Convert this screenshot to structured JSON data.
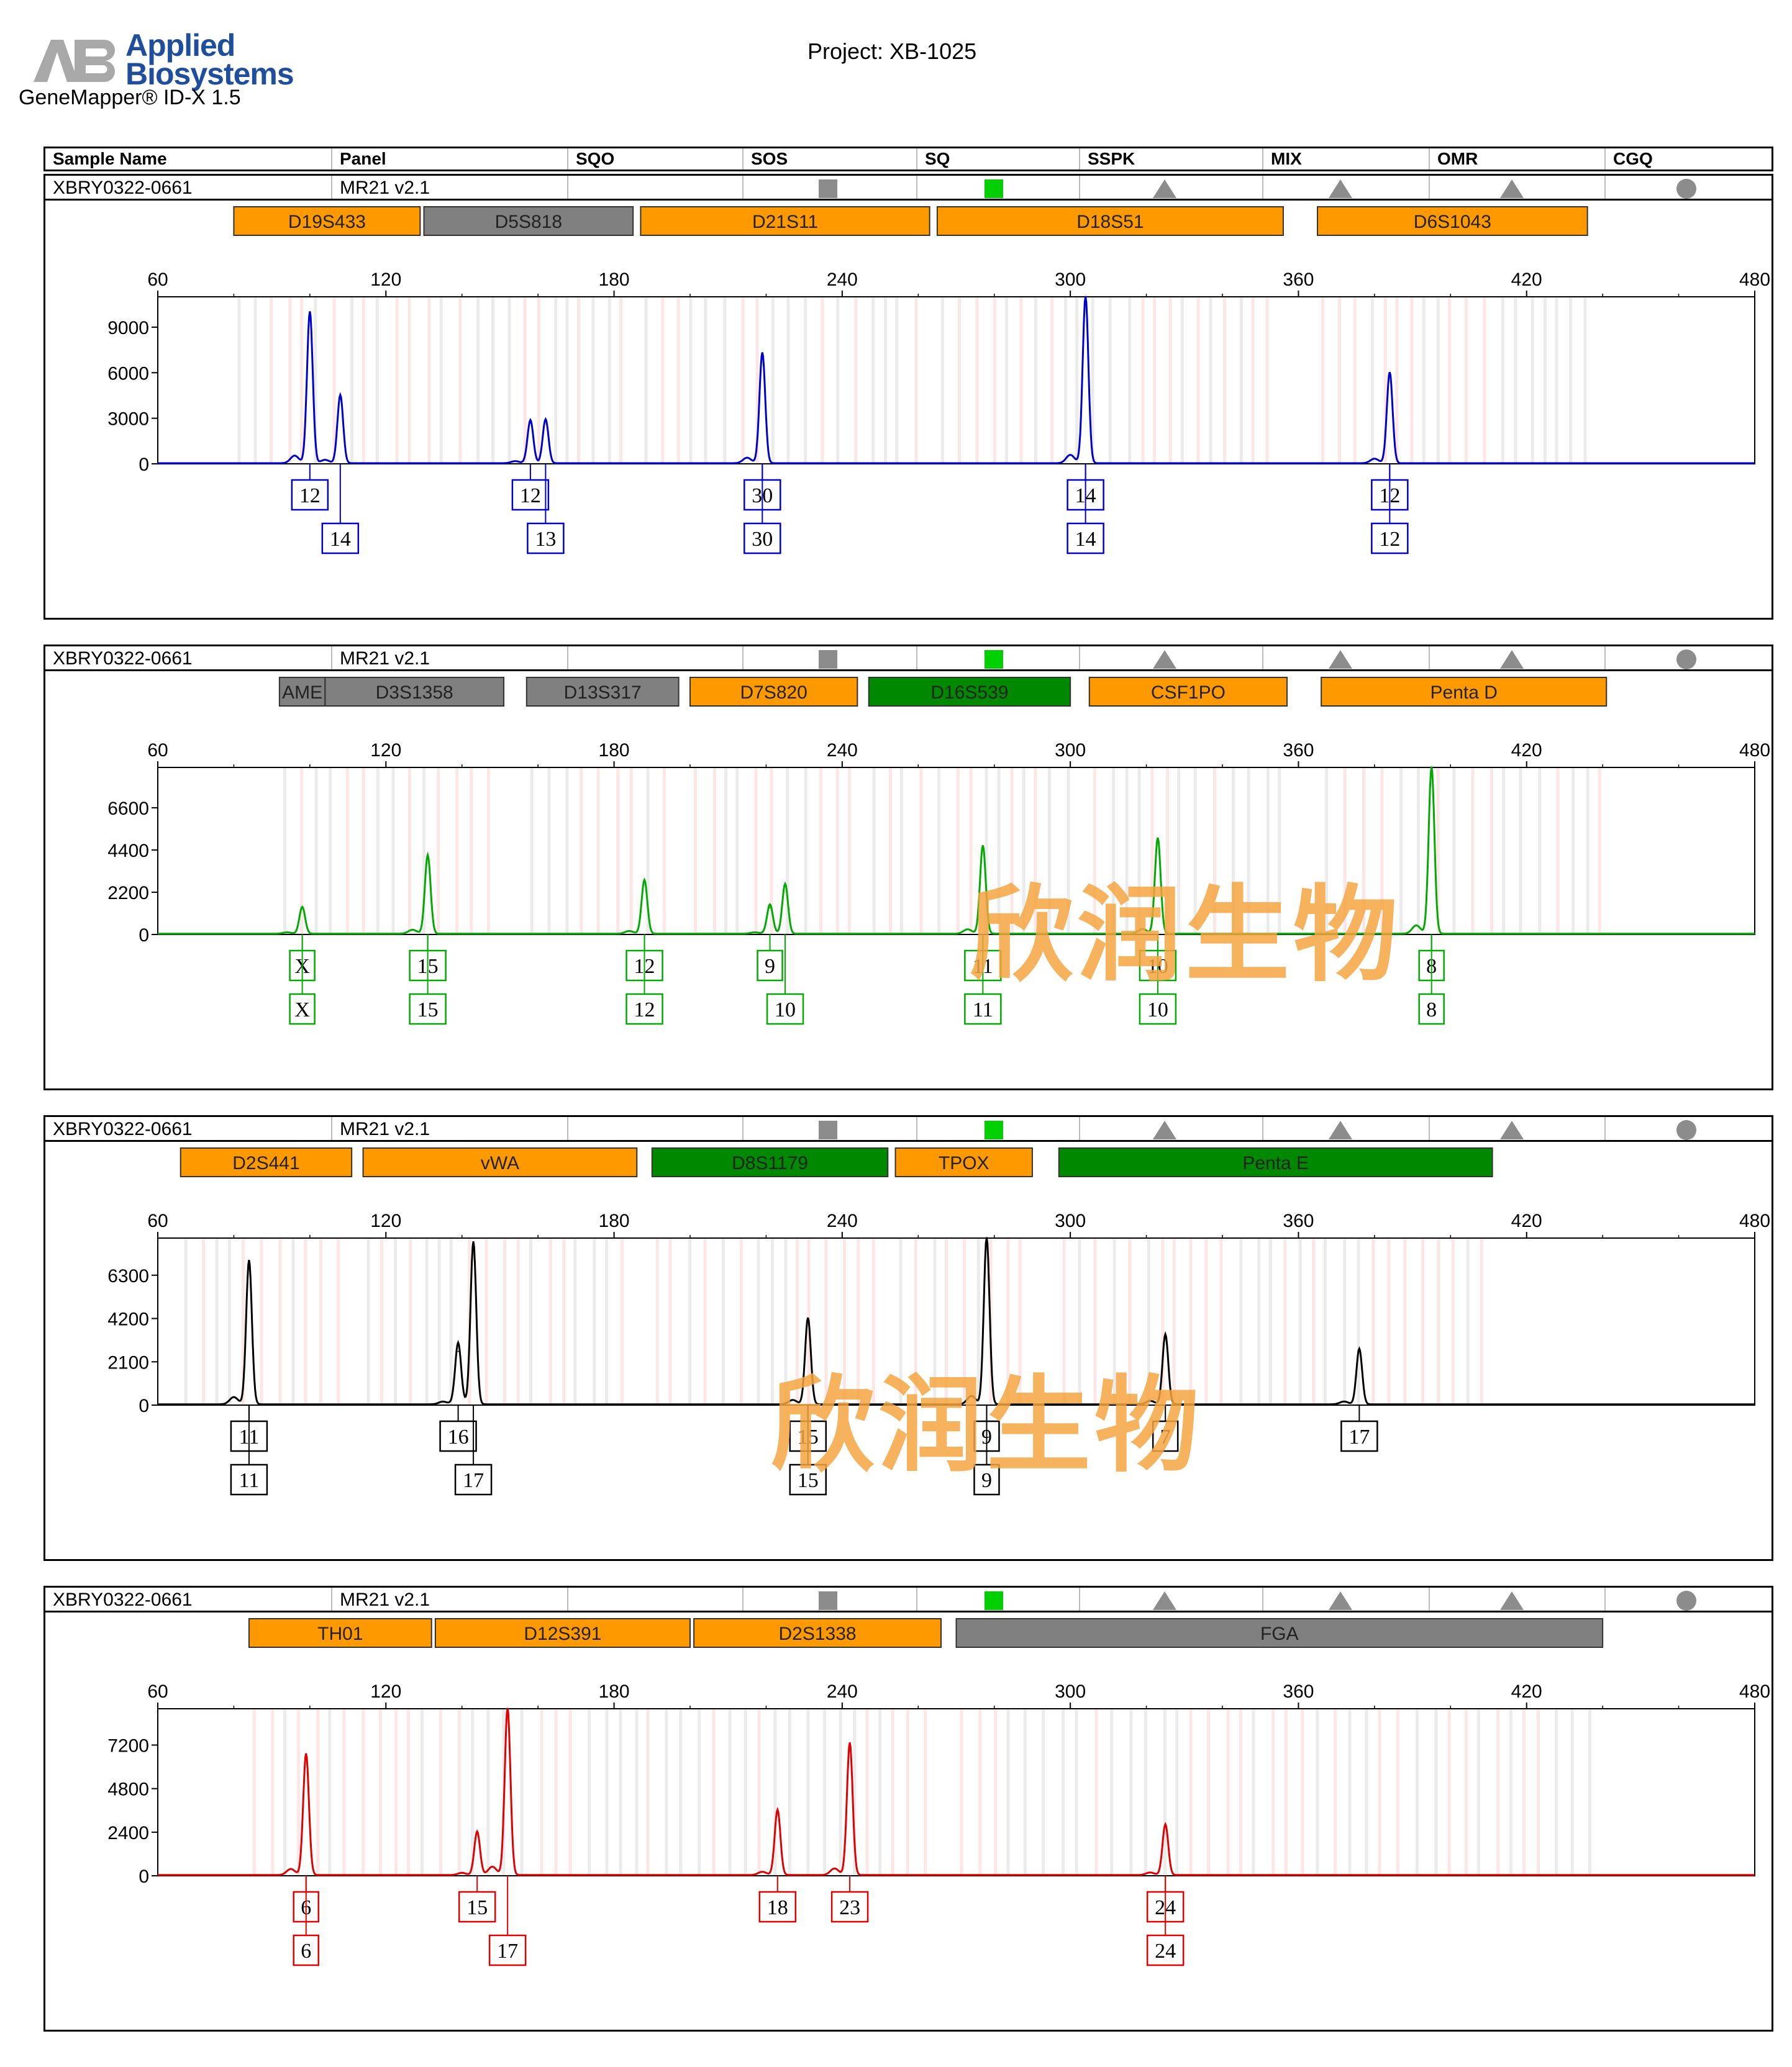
{
  "logo": {
    "brand_line1": "Applied",
    "brand_line2": "Biosystems",
    "product": "GeneMapper® ID-X  1.5"
  },
  "project": "Project: XB-1025",
  "header": {
    "columns": [
      "Sample Name",
      "Panel",
      "SQO",
      "SOS",
      "SQ",
      "SSPK",
      "MIX",
      "OMR",
      "CGQ"
    ]
  },
  "sample": {
    "name": "XBRY0322-0661",
    "panel": "MR21  v2.1"
  },
  "quality_icons": {
    "sos": "gray-square-icon",
    "sq": "green-square-icon",
    "sspk": "gray-triangle-icon",
    "mix": "gray-triangle-icon",
    "omr": "gray-triangle-icon",
    "cgq": "gray-circle-icon"
  },
  "watermark": "欣润生物",
  "colors": {
    "blue": "#0000cc",
    "green": "#00aa00",
    "black": "#000000",
    "red": "#e00000",
    "orange_marker": "#ff9900",
    "gray_marker": "#808080",
    "green_marker": "#008800"
  },
  "chart_data": [
    {
      "type": "line",
      "dye": "blue",
      "xlim": [
        60,
        480
      ],
      "ylim": [
        0,
        11000
      ],
      "x_ticks": [
        60,
        120,
        180,
        240,
        300,
        360,
        420,
        480
      ],
      "y_ticks": [
        0,
        3000,
        6000,
        9000
      ],
      "markers": [
        {
          "name": "D19S433",
          "start": 80,
          "end": 129,
          "color": "orange"
        },
        {
          "name": "D5S818",
          "start": 130,
          "end": 185,
          "color": "gray"
        },
        {
          "name": "D21S11",
          "start": 187,
          "end": 263,
          "color": "orange"
        },
        {
          "name": "D18S51",
          "start": 265,
          "end": 356,
          "color": "orange"
        },
        {
          "name": "D6S1043",
          "start": 365,
          "end": 436,
          "color": "orange"
        }
      ],
      "peaks": [
        {
          "x": 100,
          "y": 10000
        },
        {
          "x": 108,
          "y": 4500
        },
        {
          "x": 158,
          "y": 2700
        },
        {
          "x": 162,
          "y": 2900
        },
        {
          "x": 219,
          "y": 7300
        },
        {
          "x": 304,
          "y": 11000
        },
        {
          "x": 384,
          "y": 6000
        }
      ],
      "labels": [
        {
          "x": 100,
          "row": 1,
          "text": "12"
        },
        {
          "x": 108,
          "row": 2,
          "text": "14"
        },
        {
          "x": 158,
          "row": 1,
          "text": "12"
        },
        {
          "x": 162,
          "row": 2,
          "text": "13"
        },
        {
          "x": 219,
          "row": 1,
          "text": "30"
        },
        {
          "x": 219,
          "row": 2,
          "text": "30"
        },
        {
          "x": 304,
          "row": 1,
          "text": "14"
        },
        {
          "x": 304,
          "row": 2,
          "text": "14"
        },
        {
          "x": 384,
          "row": 1,
          "text": "12"
        },
        {
          "x": 384,
          "row": 2,
          "text": "12"
        }
      ]
    },
    {
      "type": "line",
      "dye": "green",
      "xlim": [
        60,
        480
      ],
      "ylim": [
        0,
        8700
      ],
      "x_ticks": [
        60,
        120,
        180,
        240,
        300,
        360,
        420,
        480
      ],
      "y_ticks": [
        0,
        2200,
        4400,
        6600
      ],
      "markers": [
        {
          "name": "AME",
          "start": 92,
          "end": 104,
          "color": "gray"
        },
        {
          "name": "D3S1358",
          "start": 104,
          "end": 151,
          "color": "gray"
        },
        {
          "name": "D13S317",
          "start": 157,
          "end": 197,
          "color": "gray"
        },
        {
          "name": "D7S820",
          "start": 200,
          "end": 244,
          "color": "orange"
        },
        {
          "name": "D16S539",
          "start": 247,
          "end": 300,
          "color": "green"
        },
        {
          "name": "CSF1PO",
          "start": 305,
          "end": 357,
          "color": "orange"
        },
        {
          "name": "Penta D",
          "start": 366,
          "end": 441,
          "color": "orange"
        }
      ],
      "peaks": [
        {
          "x": 98,
          "y": 1400
        },
        {
          "x": 131,
          "y": 4100
        },
        {
          "x": 188,
          "y": 2800
        },
        {
          "x": 221,
          "y": 1400
        },
        {
          "x": 225,
          "y": 2600
        },
        {
          "x": 277,
          "y": 4600
        },
        {
          "x": 323,
          "y": 5000
        },
        {
          "x": 395,
          "y": 8700
        }
      ],
      "labels": [
        {
          "x": 98,
          "row": 1,
          "text": "X"
        },
        {
          "x": 98,
          "row": 2,
          "text": "X"
        },
        {
          "x": 131,
          "row": 1,
          "text": "15"
        },
        {
          "x": 131,
          "row": 2,
          "text": "15"
        },
        {
          "x": 188,
          "row": 1,
          "text": "12"
        },
        {
          "x": 188,
          "row": 2,
          "text": "12"
        },
        {
          "x": 221,
          "row": 1,
          "text": "9"
        },
        {
          "x": 225,
          "row": 2,
          "text": "10"
        },
        {
          "x": 277,
          "row": 1,
          "text": "11"
        },
        {
          "x": 277,
          "row": 2,
          "text": "11"
        },
        {
          "x": 323,
          "row": 1,
          "text": "10"
        },
        {
          "x": 323,
          "row": 2,
          "text": "10"
        },
        {
          "x": 395,
          "row": 1,
          "text": "8"
        },
        {
          "x": 395,
          "row": 2,
          "text": "8"
        }
      ]
    },
    {
      "type": "line",
      "dye": "black",
      "xlim": [
        60,
        480
      ],
      "ylim": [
        0,
        8100
      ],
      "x_ticks": [
        60,
        120,
        180,
        240,
        300,
        360,
        420,
        480
      ],
      "y_ticks": [
        0,
        2100,
        4200,
        6300
      ],
      "markers": [
        {
          "name": "D2S441",
          "start": 66,
          "end": 111,
          "color": "orange"
        },
        {
          "name": "vWA",
          "start": 114,
          "end": 186,
          "color": "orange"
        },
        {
          "name": "D8S1179",
          "start": 190,
          "end": 252,
          "color": "green"
        },
        {
          "name": "TPOX",
          "start": 254,
          "end": 290,
          "color": "orange"
        },
        {
          "name": "Penta E",
          "start": 297,
          "end": 411,
          "color": "green"
        }
      ],
      "peaks": [
        {
          "x": 84,
          "y": 7000
        },
        {
          "x": 139,
          "y": 2600
        },
        {
          "x": 143,
          "y": 7900
        },
        {
          "x": 231,
          "y": 4200
        },
        {
          "x": 278,
          "y": 8100
        },
        {
          "x": 325,
          "y": 3400
        },
        {
          "x": 376,
          "y": 2700
        }
      ],
      "labels": [
        {
          "x": 84,
          "row": 1,
          "text": "11"
        },
        {
          "x": 84,
          "row": 2,
          "text": "11"
        },
        {
          "x": 139,
          "row": 1,
          "text": "16"
        },
        {
          "x": 143,
          "row": 2,
          "text": "17"
        },
        {
          "x": 231,
          "row": 1,
          "text": "15"
        },
        {
          "x": 231,
          "row": 2,
          "text": "15"
        },
        {
          "x": 278,
          "row": 1,
          "text": "9"
        },
        {
          "x": 278,
          "row": 2,
          "text": "9"
        },
        {
          "x": 325,
          "row": 1,
          "text": "7"
        },
        {
          "x": 376,
          "row": 1,
          "text": "17"
        }
      ]
    },
    {
      "type": "line",
      "dye": "red",
      "xlim": [
        60,
        480
      ],
      "ylim": [
        0,
        9200
      ],
      "x_ticks": [
        60,
        120,
        180,
        240,
        300,
        360,
        420,
        480
      ],
      "y_ticks": [
        0,
        2400,
        4800,
        7200
      ],
      "markers": [
        {
          "name": "TH01",
          "start": 84,
          "end": 132,
          "color": "orange"
        },
        {
          "name": "D12S391",
          "start": 133,
          "end": 200,
          "color": "orange"
        },
        {
          "name": "D2S1338",
          "start": 201,
          "end": 266,
          "color": "orange"
        },
        {
          "name": "FGA",
          "start": 270,
          "end": 440,
          "color": "gray"
        }
      ],
      "peaks": [
        {
          "x": 99,
          "y": 6700
        },
        {
          "x": 144,
          "y": 2400
        },
        {
          "x": 152,
          "y": 9200
        },
        {
          "x": 223,
          "y": 3600
        },
        {
          "x": 242,
          "y": 7300
        },
        {
          "x": 325,
          "y": 2800
        }
      ],
      "labels": [
        {
          "x": 99,
          "row": 1,
          "text": "6"
        },
        {
          "x": 99,
          "row": 2,
          "text": "6"
        },
        {
          "x": 144,
          "row": 1,
          "text": "15"
        },
        {
          "x": 152,
          "row": 2,
          "text": "17"
        },
        {
          "x": 223,
          "row": 1,
          "text": "18"
        },
        {
          "x": 242,
          "row": 1,
          "text": "23"
        },
        {
          "x": 325,
          "row": 1,
          "text": "24"
        },
        {
          "x": 325,
          "row": 2,
          "text": "24"
        }
      ]
    }
  ]
}
